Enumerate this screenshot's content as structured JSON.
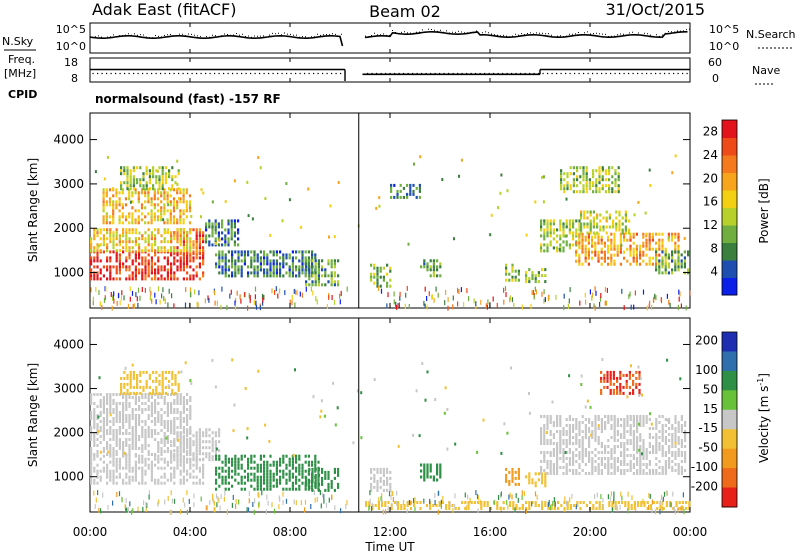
{
  "header": {
    "station": "Adak East (fitACF)",
    "beam": "Beam 02",
    "date": "31/Oct/2015"
  },
  "summary_panel": {
    "nsky_label": "N.Sky",
    "nsearch_label": "N.Search",
    "freq_label_1": "Freq.",
    "freq_label_2": "[MHz]",
    "nave_label": "Nave",
    "cpid_label": "CPID",
    "noise_left_ticks": [
      "10^5",
      "10^0"
    ],
    "noise_right_ticks": [
      "10^5",
      "10^0"
    ],
    "freq_ticks": [
      "18",
      "8"
    ],
    "nave_ticks": [
      "60",
      "0"
    ],
    "cpid_text": "normalsound (fast) -157 RF",
    "freq_mhz": [
      {
        "t0": 0,
        "t1": 10.2,
        "v": 13.2
      },
      {
        "t0": 10.9,
        "t1": 18.0,
        "v": 11.2
      },
      {
        "t0": 18.0,
        "t1": 24,
        "v": 13.2
      }
    ],
    "noise_gap_hours": [
      10.1,
      10.9
    ],
    "data_gap_hours": [
      10.5,
      11.0
    ]
  },
  "chart_data": [
    {
      "type": "heatmap",
      "name": "power",
      "xlabel": "Time UT",
      "ylabel": "Slant Range [km]",
      "xlim": [
        0,
        24
      ],
      "ylim": [
        200,
        4600
      ],
      "yticks": [
        1000,
        2000,
        3000,
        4000
      ],
      "colorbar": {
        "label": "Power [dB]",
        "tick_labels": [
          "4",
          "8",
          "12",
          "16",
          "20",
          "24",
          "28"
        ],
        "tick_values": [
          4,
          8,
          12,
          16,
          20,
          24,
          28
        ],
        "range": [
          0,
          30
        ],
        "colors": [
          "#0a1fe8",
          "#1e4fb0",
          "#3b7f3f",
          "#6fae3f",
          "#b7d12a",
          "#f3d012",
          "#f6a51d",
          "#f57a1e",
          "#ef4a1a",
          "#e2131a"
        ]
      },
      "regions": [
        {
          "t0": 0.0,
          "t1": 4.6,
          "r0": 850,
          "r1": 1500,
          "value": 27
        },
        {
          "t0": 3.2,
          "t1": 4.6,
          "r0": 1400,
          "r1": 2000,
          "value": 24
        },
        {
          "t0": 0.0,
          "t1": 4.0,
          "r0": 1500,
          "r1": 2000,
          "value": 17
        },
        {
          "t0": 0.5,
          "t1": 4.0,
          "r0": 2100,
          "r1": 2900,
          "value": 18
        },
        {
          "t0": 1.2,
          "t1": 3.6,
          "r0": 2900,
          "r1": 3400,
          "value": 13
        },
        {
          "t0": 4.6,
          "t1": 6.0,
          "r0": 1600,
          "r1": 2200,
          "value": 7
        },
        {
          "t0": 5.0,
          "t1": 9.0,
          "r0": 900,
          "r1": 1500,
          "value": 7
        },
        {
          "t0": 8.6,
          "t1": 10.0,
          "r0": 700,
          "r1": 1300,
          "value": 10
        },
        {
          "t0": 11.2,
          "t1": 12.0,
          "r0": 700,
          "r1": 1200,
          "value": 12
        },
        {
          "t0": 12.0,
          "t1": 13.2,
          "r0": 2700,
          "r1": 3000,
          "value": 7
        },
        {
          "t0": 13.2,
          "t1": 14.0,
          "r0": 900,
          "r1": 1300,
          "value": 10
        },
        {
          "t0": 16.6,
          "t1": 17.2,
          "r0": 800,
          "r1": 1200,
          "value": 12
        },
        {
          "t0": 17.4,
          "t1": 18.2,
          "r0": 800,
          "r1": 1100,
          "value": 11
        },
        {
          "t0": 18.0,
          "t1": 19.6,
          "r0": 1500,
          "r1": 2200,
          "value": 13
        },
        {
          "t0": 19.4,
          "t1": 23.6,
          "r0": 1200,
          "r1": 1900,
          "value": 20
        },
        {
          "t0": 19.6,
          "t1": 21.6,
          "r0": 1900,
          "r1": 2400,
          "value": 14
        },
        {
          "t0": 18.8,
          "t1": 21.2,
          "r0": 2800,
          "r1": 3400,
          "value": 13
        },
        {
          "t0": 22.6,
          "t1": 24.0,
          "r0": 1000,
          "r1": 1500,
          "value": 10
        }
      ]
    },
    {
      "type": "heatmap",
      "name": "velocity",
      "xlabel": "Time UT",
      "ylabel": "Slant Range [km]",
      "xlim": [
        0,
        24
      ],
      "ylim": [
        200,
        4600
      ],
      "yticks": [
        1000,
        2000,
        3000,
        4000
      ],
      "xtick_labels": [
        "00:00",
        "04:00",
        "08:00",
        "12:00",
        "16:00",
        "20:00",
        "00:00"
      ],
      "xtick_values": [
        0,
        4,
        8,
        12,
        16,
        20,
        24
      ],
      "colorbar": {
        "label": "Velocity [m s^-1]",
        "tick_labels": [
          "200",
          "100",
          "50",
          "15",
          "-15",
          "-50",
          "-100",
          "-200"
        ],
        "colors": [
          "#1d2fb0",
          "#2f6fae",
          "#2e8f46",
          "#67c23a",
          "#c7c7c7",
          "#f1c133",
          "#f29a1d",
          "#ef6b1b",
          "#e7201a"
        ]
      },
      "regions": [
        {
          "t0": 0.0,
          "t1": 4.6,
          "r0": 850,
          "r1": 1500,
          "value": 0
        },
        {
          "t0": 3.2,
          "t1": 5.2,
          "r0": 1400,
          "r1": 2100,
          "value": 0
        },
        {
          "t0": 0.0,
          "t1": 4.0,
          "r0": 1500,
          "r1": 2900,
          "value": 0
        },
        {
          "t0": 1.2,
          "t1": 3.6,
          "r0": 2900,
          "r1": 3400,
          "value": -20
        },
        {
          "t0": 5.0,
          "t1": 9.2,
          "r0": 750,
          "r1": 1500,
          "value": 30
        },
        {
          "t0": 8.6,
          "t1": 10.0,
          "r0": 700,
          "r1": 1200,
          "value": 30
        },
        {
          "t0": 11.2,
          "t1": 12.0,
          "r0": 700,
          "r1": 1200,
          "value": 0
        },
        {
          "t0": 13.2,
          "t1": 14.0,
          "r0": 900,
          "r1": 1300,
          "value": 30
        },
        {
          "t0": 16.6,
          "t1": 17.2,
          "r0": 800,
          "r1": 1200,
          "value": -70
        },
        {
          "t0": 17.4,
          "t1": 18.2,
          "r0": 800,
          "r1": 1100,
          "value": -40
        },
        {
          "t0": 18.0,
          "t1": 23.8,
          "r0": 1100,
          "r1": 2400,
          "value": 0
        },
        {
          "t0": 20.4,
          "t1": 22.0,
          "r0": 2900,
          "r1": 3400,
          "value": -150
        },
        {
          "t0": 11.0,
          "t1": 24.0,
          "r0": 250,
          "r1": 450,
          "value": -30
        }
      ]
    }
  ]
}
